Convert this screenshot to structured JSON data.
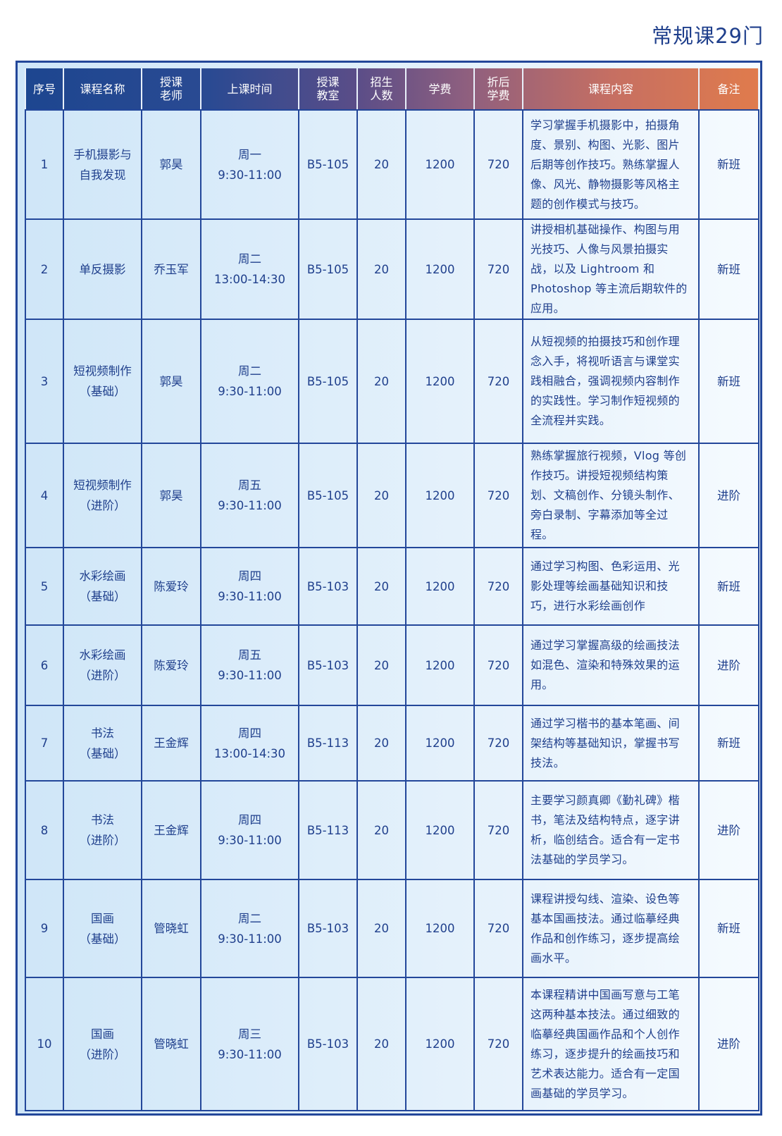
{
  "title": "常规课29门",
  "colors": {
    "primary": "#23479a",
    "header_start": "#1d4690",
    "header_end": "#e07b4c",
    "cell_bg": "#dceefa"
  },
  "headers": [
    "序号",
    "课程名称",
    "授课\n老师",
    "上课时间",
    "授课\n教室",
    "招生\n人数",
    "学费",
    "折后\n学费",
    "课程内容",
    "备注"
  ],
  "rows": [
    {
      "no": "1",
      "name": "手机摄影与\n自我发现",
      "teacher": "郭昊",
      "time": "周一\n9:30-11:00",
      "room": "B5-105",
      "quota": "20",
      "fee": "1200",
      "discount": "720",
      "content": "学习掌握手机摄影中，拍摄角度、景别、构图、光影、图片后期等创作技巧。熟练掌握人像、风光、静物摄影等风格主题的创作模式与技巧。",
      "note": "新班"
    },
    {
      "no": "2",
      "name": "单反摄影",
      "teacher": "乔玉军",
      "time": "周二\n13:00-14:30",
      "room": "B5-105",
      "quota": "20",
      "fee": "1200",
      "discount": "720",
      "content": "讲授相机基础操作、构图与用光技巧、人像与风景拍摄实战，以及 Lightroom 和 Photoshop 等主流后期软件的应用。",
      "note": "新班"
    },
    {
      "no": "3",
      "name": "短视频制作\n（基础）",
      "teacher": "郭昊",
      "time": "周二\n9:30-11:00",
      "room": "B5-105",
      "quota": "20",
      "fee": "1200",
      "discount": "720",
      "content": "从短视频的拍摄技巧和创作理念入手，将视听语言与课堂实践相融合，强调视频内容制作的实践性。学习制作短视频的全流程并实践。",
      "note": "新班"
    },
    {
      "no": "4",
      "name": "短视频制作\n（进阶）",
      "teacher": "郭昊",
      "time": "周五\n9:30-11:00",
      "room": "B5-105",
      "quota": "20",
      "fee": "1200",
      "discount": "720",
      "content": "熟练掌握旅行视频，Vlog 等创作技巧。讲授短视频结构策划、文稿创作、分镜头制作、旁白录制、字幕添加等全过程。",
      "note": "进阶"
    },
    {
      "no": "5",
      "name": "水彩绘画\n（基础）",
      "teacher": "陈爱玲",
      "time": "周四\n9:30-11:00",
      "room": "B5-103",
      "quota": "20",
      "fee": "1200",
      "discount": "720",
      "content": "通过学习构图、色彩运用、光影处理等绘画基础知识和技巧，进行水彩绘画创作",
      "note": "新班"
    },
    {
      "no": "6",
      "name": "水彩绘画\n（进阶）",
      "teacher": "陈爱玲",
      "time": "周五\n9:30-11:00",
      "room": "B5-103",
      "quota": "20",
      "fee": "1200",
      "discount": "720",
      "content": "通过学习掌握高级的绘画技法如混色、渲染和特殊效果的运用。",
      "note": "进阶"
    },
    {
      "no": "7",
      "name": "书法\n（基础）",
      "teacher": "王金辉",
      "time": "周四\n13:00-14:30",
      "room": "B5-113",
      "quota": "20",
      "fee": "1200",
      "discount": "720",
      "content": "通过学习楷书的基本笔画、间架结构等基础知识，掌握书写技法。",
      "note": "新班"
    },
    {
      "no": "8",
      "name": "书法\n（进阶）",
      "teacher": "王金辉",
      "time": "周四\n9:30-11:00",
      "room": "B5-113",
      "quota": "20",
      "fee": "1200",
      "discount": "720",
      "content": "主要学习颜真卿《勤礼碑》楷书，笔法及结构特点，逐字讲析，临创结合。适合有一定书法基础的学员学习。",
      "note": "进阶"
    },
    {
      "no": "9",
      "name": "国画\n（基础）",
      "teacher": "管晓虹",
      "time": "周二\n9:30-11:00",
      "room": "B5-103",
      "quota": "20",
      "fee": "1200",
      "discount": "720",
      "content": "课程讲授勾线、渲染、设色等基本国画技法。通过临摹经典作品和创作练习，逐步提高绘画水平。",
      "note": "新班"
    },
    {
      "no": "10",
      "name": "国画\n（进阶）",
      "teacher": "管晓虹",
      "time": "周三\n9:30-11:00",
      "room": "B5-103",
      "quota": "20",
      "fee": "1200",
      "discount": "720",
      "content": "本课程精讲中国画写意与工笔这两种基本技法。通过细致的临摹经典国画作品和个人创作练习，逐步提升的绘画技巧和艺术表达能力。适合有一定国画基础的学员学习。",
      "note": "进阶"
    }
  ]
}
